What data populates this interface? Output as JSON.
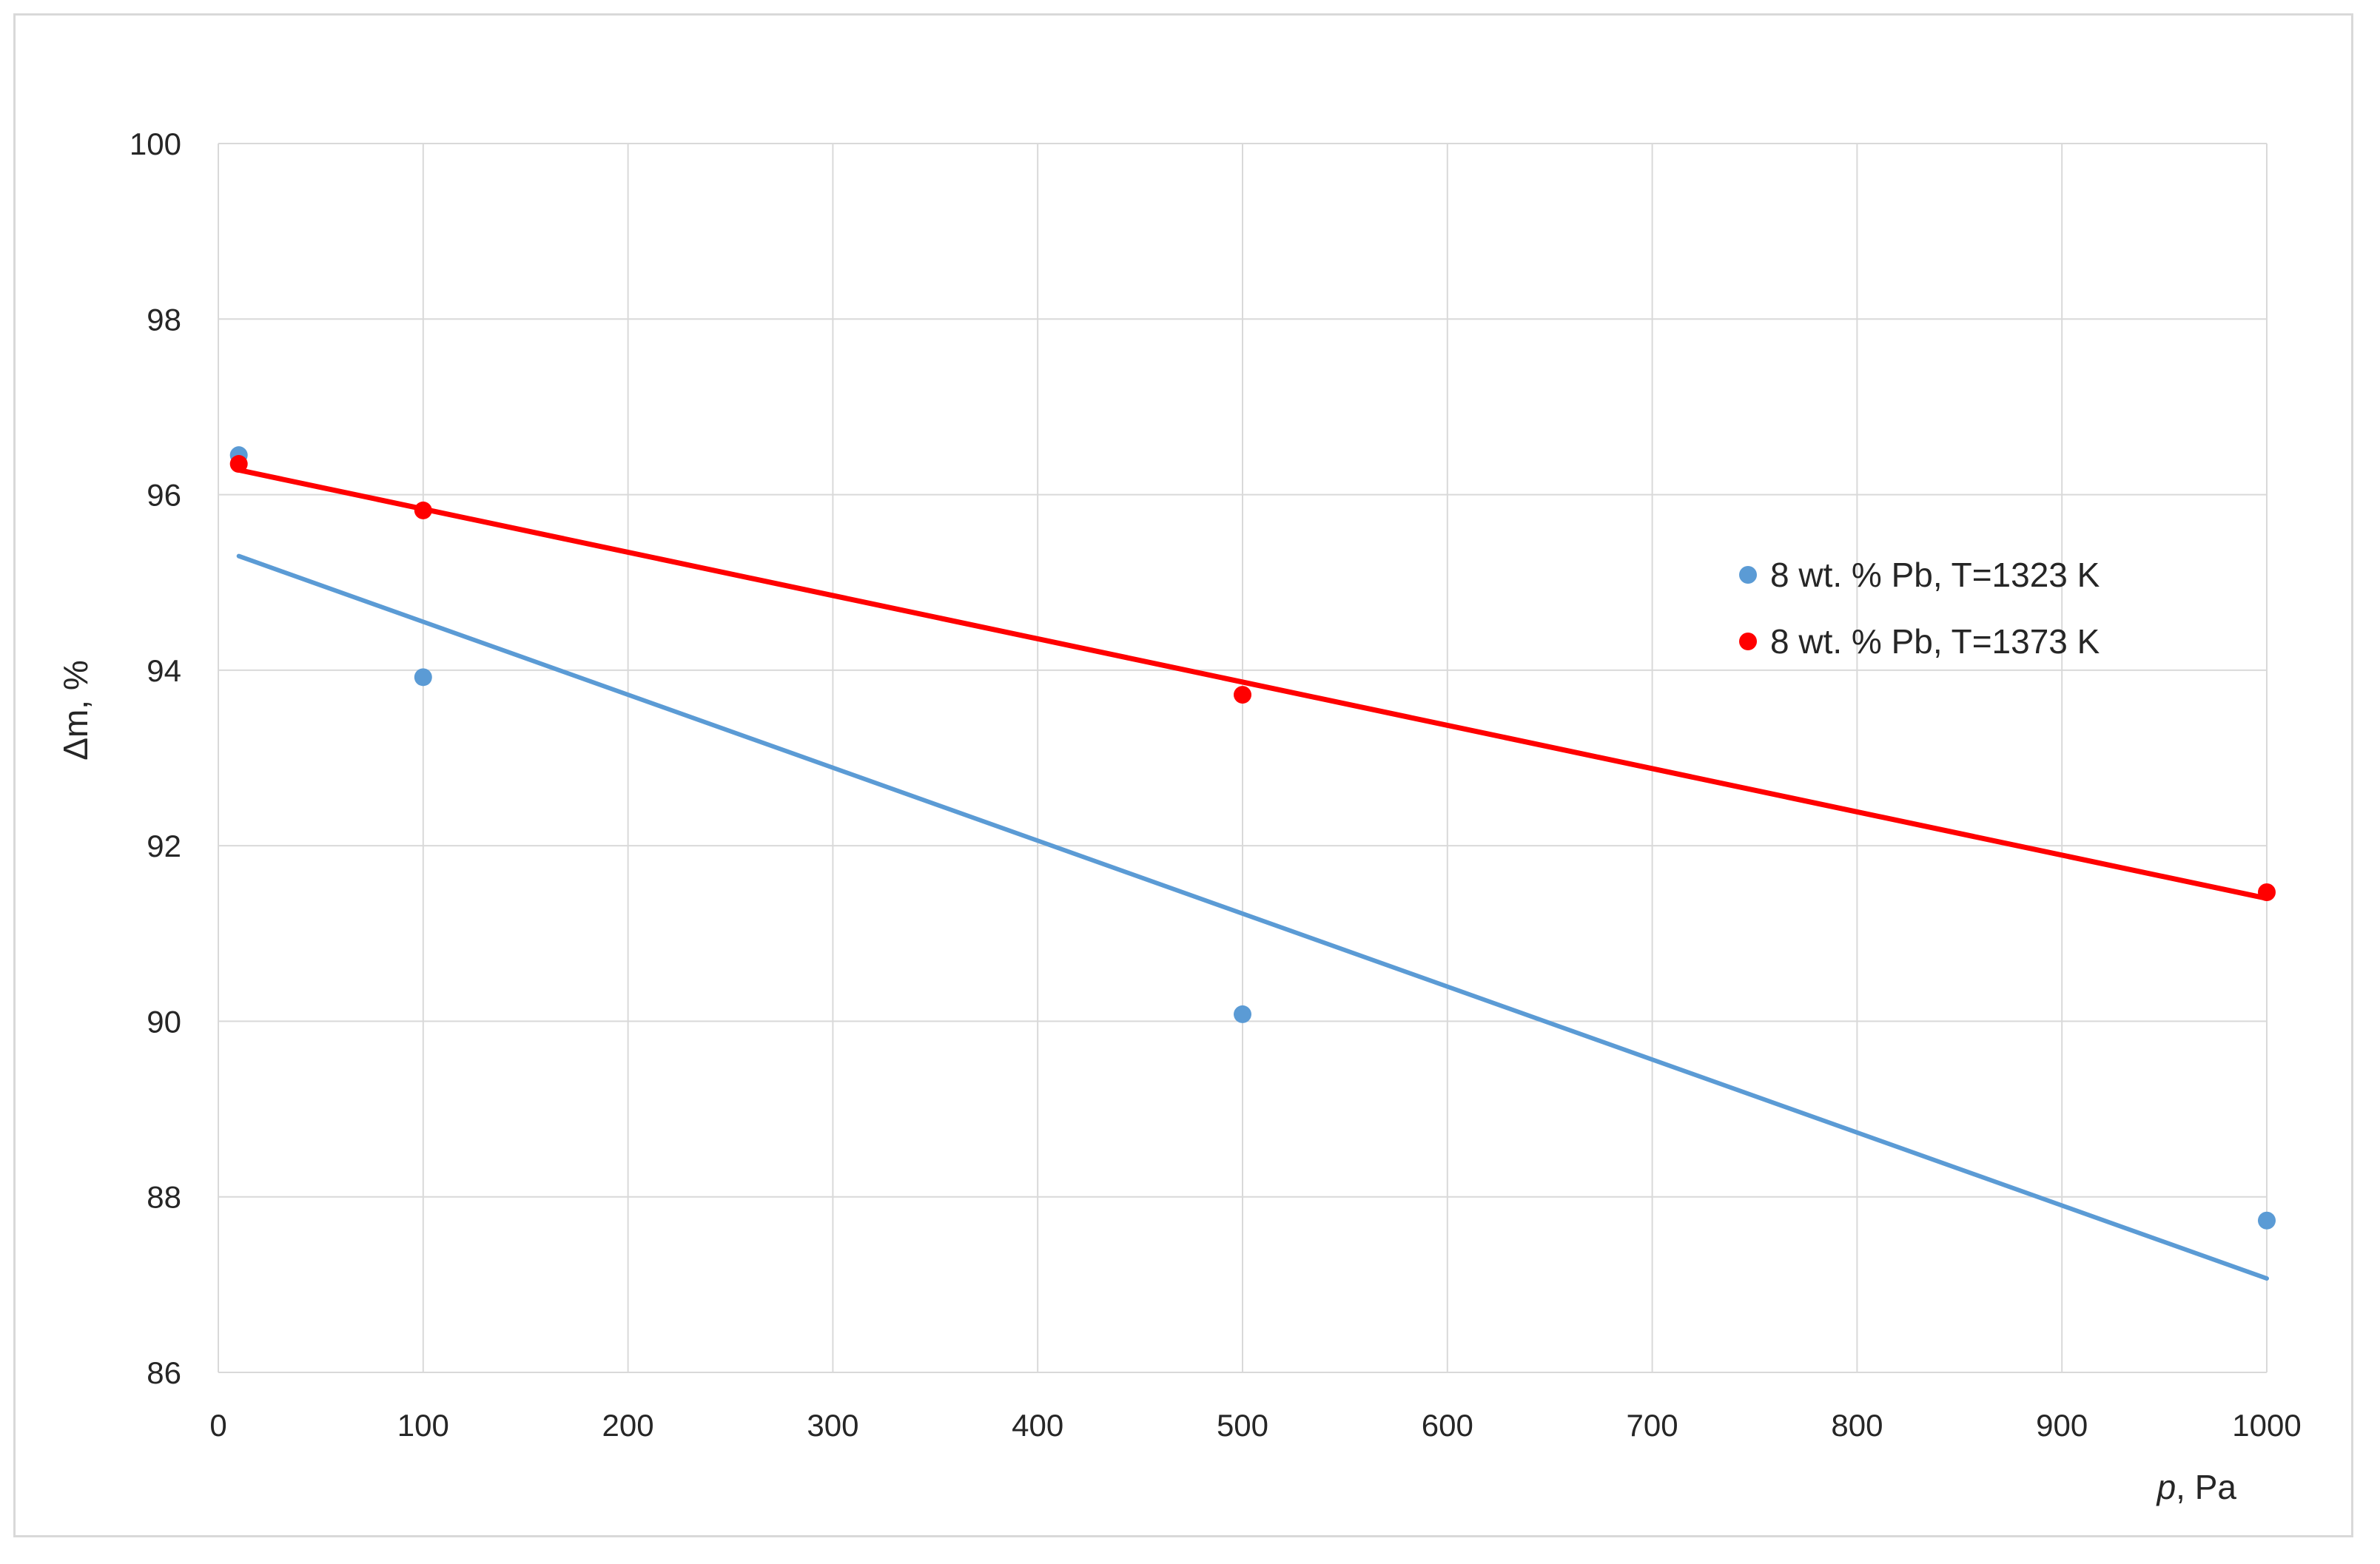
{
  "chart_data": {
    "type": "scatter",
    "xlabel_italic": "p",
    "xlabel_rest": ", Pa",
    "ylabel": "Δm, %",
    "xlim": [
      0,
      1000
    ],
    "ylim": [
      86,
      100
    ],
    "x_ticks": [
      0,
      100,
      200,
      300,
      400,
      500,
      600,
      700,
      800,
      900,
      1000
    ],
    "y_ticks": [
      86,
      88,
      90,
      92,
      94,
      96,
      98,
      100
    ],
    "grid": true,
    "legend_position": "right",
    "series": [
      {
        "name": "8 wt. % Pb, T=1323 K",
        "color": "#5b9bd5",
        "x": [
          10,
          100,
          500,
          1000
        ],
        "y": [
          96.45,
          93.92,
          90.08,
          87.73
        ],
        "trendline": {
          "x": [
            10,
            1000
          ],
          "y": [
            95.3,
            87.07
          ]
        }
      },
      {
        "name": "8 wt. % Pb, T=1373 K",
        "color": "#ff0000",
        "x": [
          10,
          100,
          500,
          1000
        ],
        "y": [
          96.35,
          95.82,
          93.72,
          91.47
        ],
        "trendline": {
          "x": [
            10,
            1000
          ],
          "y": [
            96.28,
            91.4
          ]
        }
      }
    ]
  }
}
